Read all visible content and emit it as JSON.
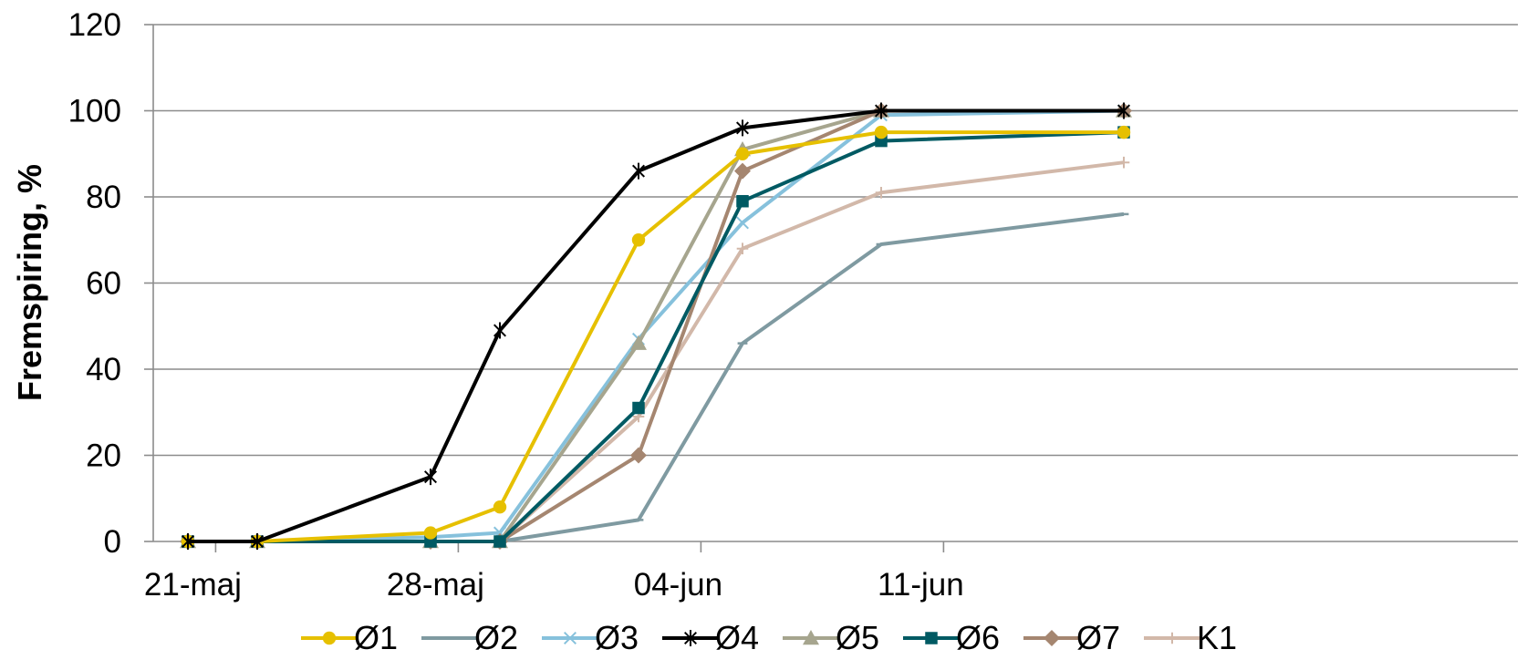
{
  "chart_data": {
    "type": "line",
    "title": "",
    "xlabel": "",
    "ylabel": "Fremspiring, %",
    "ylim": [
      0,
      120
    ],
    "yticks": [
      0,
      20,
      40,
      60,
      80,
      100,
      120
    ],
    "xlim": [
      "2014-05-20",
      "2014-06-15"
    ],
    "xticks": [
      {
        "date": "2014-05-21",
        "label": "21-maj"
      },
      {
        "date": "2014-05-28",
        "label": "28-maj"
      },
      {
        "date": "2014-06-04",
        "label": "04-jun"
      },
      {
        "date": "2014-06-11",
        "label": "11-jun"
      }
    ],
    "grid": "horizontal",
    "legend": "bottom",
    "series": [
      {
        "name": "Ø1",
        "color": "#E6C000",
        "marker": "circle",
        "points": [
          [
            "2014-05-21",
            0
          ],
          [
            "2014-05-23",
            0
          ],
          [
            "2014-05-28",
            2
          ],
          [
            "2014-05-30",
            8
          ],
          [
            "2014-06-03",
            70
          ],
          [
            "2014-06-06",
            90
          ],
          [
            "2014-06-10",
            95
          ],
          [
            "2014-06-17",
            95
          ]
        ]
      },
      {
        "name": "Ø2",
        "color": "#7F9AA1",
        "marker": "dash",
        "points": [
          [
            "2014-05-21",
            0
          ],
          [
            "2014-05-23",
            0
          ],
          [
            "2014-05-28",
            0
          ],
          [
            "2014-05-30",
            0
          ],
          [
            "2014-06-03",
            5
          ],
          [
            "2014-06-06",
            46
          ],
          [
            "2014-06-10",
            69
          ],
          [
            "2014-06-17",
            76
          ]
        ]
      },
      {
        "name": "Ø3",
        "color": "#86C1DC",
        "marker": "x",
        "points": [
          [
            "2014-05-21",
            0
          ],
          [
            "2014-05-23",
            0
          ],
          [
            "2014-05-28",
            1
          ],
          [
            "2014-05-30",
            2
          ],
          [
            "2014-06-03",
            47
          ],
          [
            "2014-06-06",
            74
          ],
          [
            "2014-06-10",
            99
          ],
          [
            "2014-06-17",
            100
          ]
        ]
      },
      {
        "name": "Ø4",
        "color": "#000000",
        "marker": "star",
        "points": [
          [
            "2014-05-21",
            0
          ],
          [
            "2014-05-23",
            0
          ],
          [
            "2014-05-28",
            15
          ],
          [
            "2014-05-30",
            49
          ],
          [
            "2014-06-03",
            86
          ],
          [
            "2014-06-06",
            96
          ],
          [
            "2014-06-10",
            100
          ],
          [
            "2014-06-17",
            100
          ]
        ]
      },
      {
        "name": "Ø5",
        "color": "#A6A58E",
        "marker": "triangle",
        "points": [
          [
            "2014-05-21",
            0
          ],
          [
            "2014-05-23",
            0
          ],
          [
            "2014-05-28",
            0
          ],
          [
            "2014-05-30",
            0
          ],
          [
            "2014-06-03",
            46
          ],
          [
            "2014-06-06",
            91
          ],
          [
            "2014-06-10",
            100
          ],
          [
            "2014-06-17",
            100
          ]
        ]
      },
      {
        "name": "Ø6",
        "color": "#005A63",
        "marker": "square",
        "points": [
          [
            "2014-05-21",
            0
          ],
          [
            "2014-05-23",
            0
          ],
          [
            "2014-05-28",
            0
          ],
          [
            "2014-05-30",
            0
          ],
          [
            "2014-06-03",
            31
          ],
          [
            "2014-06-06",
            79
          ],
          [
            "2014-06-10",
            93
          ],
          [
            "2014-06-17",
            95
          ]
        ]
      },
      {
        "name": "Ø7",
        "color": "#A58670",
        "marker": "diamond",
        "points": [
          [
            "2014-05-21",
            0
          ],
          [
            "2014-05-23",
            0
          ],
          [
            "2014-05-28",
            0
          ],
          [
            "2014-05-30",
            0
          ],
          [
            "2014-06-03",
            20
          ],
          [
            "2014-06-06",
            86
          ],
          [
            "2014-06-10",
            100
          ],
          [
            "2014-06-17",
            100
          ]
        ]
      },
      {
        "name": "K1",
        "color": "#D2B8A9",
        "marker": "plus",
        "points": [
          [
            "2014-05-21",
            0
          ],
          [
            "2014-05-23",
            0
          ],
          [
            "2014-05-28",
            0
          ],
          [
            "2014-05-30",
            0
          ],
          [
            "2014-06-03",
            29
          ],
          [
            "2014-06-06",
            68
          ],
          [
            "2014-06-10",
            81
          ],
          [
            "2014-06-17",
            88
          ]
        ]
      }
    ]
  }
}
